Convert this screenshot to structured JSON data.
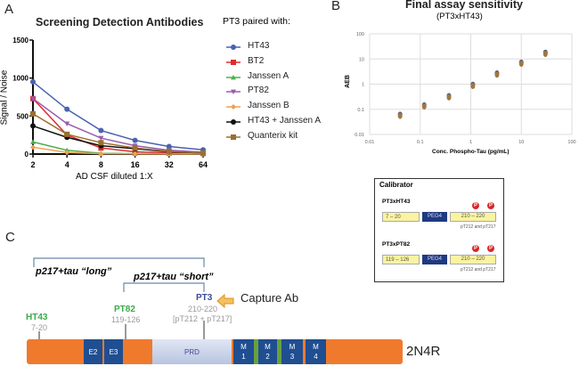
{
  "panels": {
    "a": "A",
    "b": "B",
    "c": "C"
  },
  "chart_data": [
    {
      "type": "line",
      "title": "Screening Detection Antibodies",
      "xlabel": "AD CSF diluted 1:X",
      "ylabel": "Signal / Noise",
      "x": [
        2,
        4,
        8,
        16,
        32,
        64
      ],
      "x_scale": "log2",
      "ylim": [
        0,
        1500
      ],
      "yticks": [
        0,
        500,
        1000,
        1500
      ],
      "legend_title": "PT3 paired with:",
      "legend_position": "right",
      "grid": false,
      "series": [
        {
          "name": "HT43",
          "color": "#4a62b0",
          "marker": "circle",
          "values": [
            950,
            590,
            310,
            180,
            100,
            55
          ]
        },
        {
          "name": "BT2",
          "color": "#e02b2b",
          "marker": "square",
          "values": [
            730,
            250,
            80,
            30,
            15,
            8
          ]
        },
        {
          "name": "Janssen A",
          "color": "#4cb04c",
          "marker": "triangle-up",
          "values": [
            160,
            50,
            10,
            5,
            3,
            2
          ]
        },
        {
          "name": "PT82",
          "color": "#9a5bb0",
          "marker": "triangle-down",
          "values": [
            730,
            400,
            210,
            110,
            50,
            25
          ]
        },
        {
          "name": "Janssen B",
          "color": "#f0a050",
          "marker": "diamond",
          "values": [
            90,
            20,
            5,
            3,
            2,
            1
          ]
        },
        {
          "name": "HT43 + Janssen A",
          "color": "#111111",
          "marker": "circle",
          "values": [
            370,
            220,
            110,
            70,
            30,
            15
          ]
        },
        {
          "name": "Quanterix kit",
          "color": "#9a7030",
          "marker": "square",
          "values": [
            530,
            260,
            150,
            80,
            35,
            15
          ]
        }
      ]
    },
    {
      "type": "scatter",
      "title": "Final assay sensitivity",
      "subtitle": "(PT3xHT43)",
      "xlabel": "Conc. Phospho-Tau (pg/mL)",
      "ylabel": "AEB",
      "x_scale": "log",
      "y_scale": "log",
      "xlim": [
        0.01,
        100
      ],
      "ylim": [
        0.01,
        100
      ],
      "xticks": [
        "0.01",
        "0.1",
        "1",
        "10",
        "100"
      ],
      "yticks": [
        "0.01",
        "0.1",
        "1",
        "10",
        "100"
      ],
      "grid": true,
      "x": [
        0.04,
        0.12,
        0.37,
        1.1,
        3.3,
        10,
        30
      ],
      "y": [
        0.055,
        0.13,
        0.3,
        0.85,
        2.4,
        6.5,
        16
      ],
      "color": "#a07840"
    }
  ],
  "calibrator": {
    "title": "Calibrator",
    "rows": [
      {
        "name": "PT3xHT43",
        "left": "7 – 20",
        "linker": "PEG4",
        "right": "210 – 220",
        "note": "pT212 and pT217"
      },
      {
        "name": "PT3xPT82",
        "left": "119 – 126",
        "linker": "PEG4",
        "right": "210 – 220",
        "note": "pT212 and pT217"
      }
    ],
    "phospho": "P"
  },
  "diagram": {
    "long": "p217+tau “long”",
    "short": "p217+tau “short”",
    "pt3": "PT3",
    "pt3_range": "210-220",
    "pt3_sites": "[pT212 + pT217]",
    "capture": "Capture Ab",
    "ht43": "HT43",
    "ht43_range": "7-20",
    "pt82": "PT82",
    "pt82_range": "119-126",
    "segments": {
      "e2": "E2",
      "e3": "E3",
      "prd": "PRD",
      "m1": "M 1",
      "m2": "M 2",
      "m3": "M 3",
      "m4": "M 4"
    },
    "isoform": "2N4R"
  }
}
